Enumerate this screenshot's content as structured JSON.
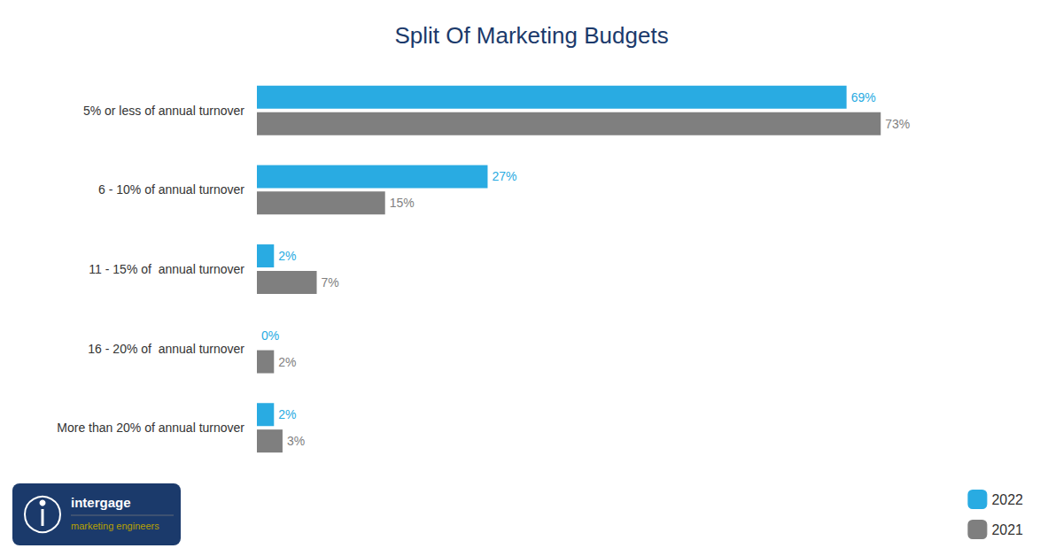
{
  "chart_data": {
    "type": "bar",
    "orientation": "horizontal",
    "title": "Split Of Marketing Budgets",
    "categories": [
      "5% or less of annual turnover",
      "6 - 10% of annual turnover",
      "11 - 15% of  annual turnover",
      "16 - 20% of  annual turnover",
      "More than 20% of annual turnover"
    ],
    "series": [
      {
        "name": "2022",
        "color": "#29ABE2",
        "values": [
          69,
          27,
          2,
          0,
          2
        ],
        "value_labels": [
          "69%",
          "27%",
          "2%",
          "0%",
          "2%"
        ]
      },
      {
        "name": "2021",
        "color": "#7F7F7F",
        "values": [
          73,
          15,
          7,
          2,
          3
        ],
        "value_labels": [
          "73%",
          "15%",
          "7%",
          "2%",
          "3%"
        ]
      }
    ],
    "xlim": [
      0,
      85
    ],
    "data_labels": true,
    "tick_labels": "y",
    "grid": false,
    "legend": "lower right",
    "annotations": [
      "intergage",
      "marketing engineers"
    ]
  }
}
